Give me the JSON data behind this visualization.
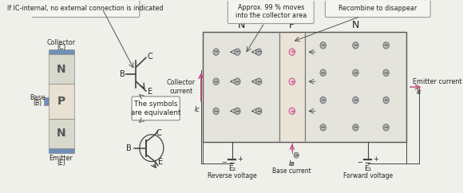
{
  "bg_color": "#f0f0ea",
  "box_callout1": "If IC-internal, no external connection is indicated",
  "box_callout2": "Approx. 99 % moves\ninto the collector area",
  "box_callout3": "Recombine to disappear",
  "box_equiv": "The symbols\nare equivalent",
  "color_N": "#d8d8cc",
  "color_P": "#e8e0d0",
  "color_contact": "#7090b8",
  "arrow_color": "#c05080",
  "text_color": "#222222",
  "line_color": "#444444",
  "neg_fc": "#b0b0b0",
  "neg_ec": "#666666",
  "pos_fc": "#f0c8d8",
  "pos_ec": "#c05080"
}
